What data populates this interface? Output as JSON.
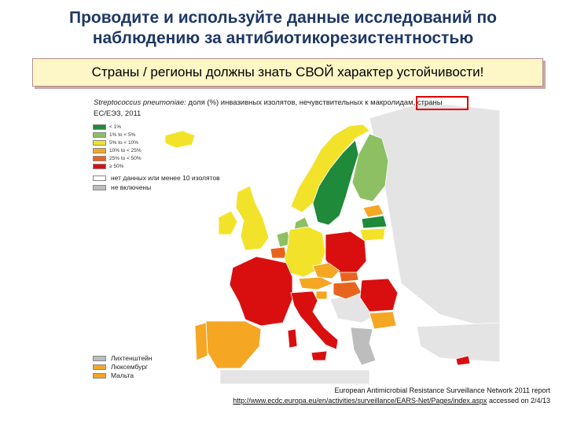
{
  "title": {
    "line1": "Проводите и используйте данные исследований по",
    "line2": "наблюдению за антибиотикорезистентностью"
  },
  "banner": "Страны / регионы должны знать СВОЙ характер устойчивости!",
  "caption": {
    "species": "Streptococcus pneumoniae:",
    "text1": " доля (%) инвазивных изолятов, нечувствительных к макролидам, страны",
    "text2": "ЕС/ЕЭЗ, 2011"
  },
  "colors": {
    "c1": "#1e8a3a",
    "c2": "#8cc063",
    "c3": "#f2e32a",
    "c4": "#f5a623",
    "c5": "#e8641e",
    "c6": "#d90f0f",
    "nodata": "#ffffff",
    "excluded": "#bdbdbd",
    "sea": "#ffffff",
    "outside": "#e4e4e4",
    "highlight": "#e00000"
  },
  "legend": [
    {
      "label": "< 1%",
      "color_key": "c1"
    },
    {
      "label": "1% to < 5%",
      "color_key": "c2"
    },
    {
      "label": "5% to < 10%",
      "color_key": "c3"
    },
    {
      "label": "10% to < 25%",
      "color_key": "c4"
    },
    {
      "label": "25% to < 50%",
      "color_key": "c5"
    },
    {
      "label": "≥ 50%",
      "color_key": "c6"
    }
  ],
  "nodata_legend": [
    {
      "label": "нет данных или менее 10 изолятов",
      "color_key": "nodata"
    },
    {
      "label": "не включены",
      "color_key": "excluded"
    }
  ],
  "small_states": [
    {
      "label": "Лихтенштейн",
      "color_key": "excluded"
    },
    {
      "label": "Люксембург",
      "color_key": "c4"
    },
    {
      "label": "Мальта",
      "color_key": "c4"
    }
  ],
  "source": {
    "line1": "European Antimicrobial Resistance Surveillance Network 2011 report",
    "url": "http://www.ecdc.europa.eu/en/activities/surveillance/EARS-Net/Pages/index.aspx",
    "accessed": " accessed on 2/4/13"
  }
}
